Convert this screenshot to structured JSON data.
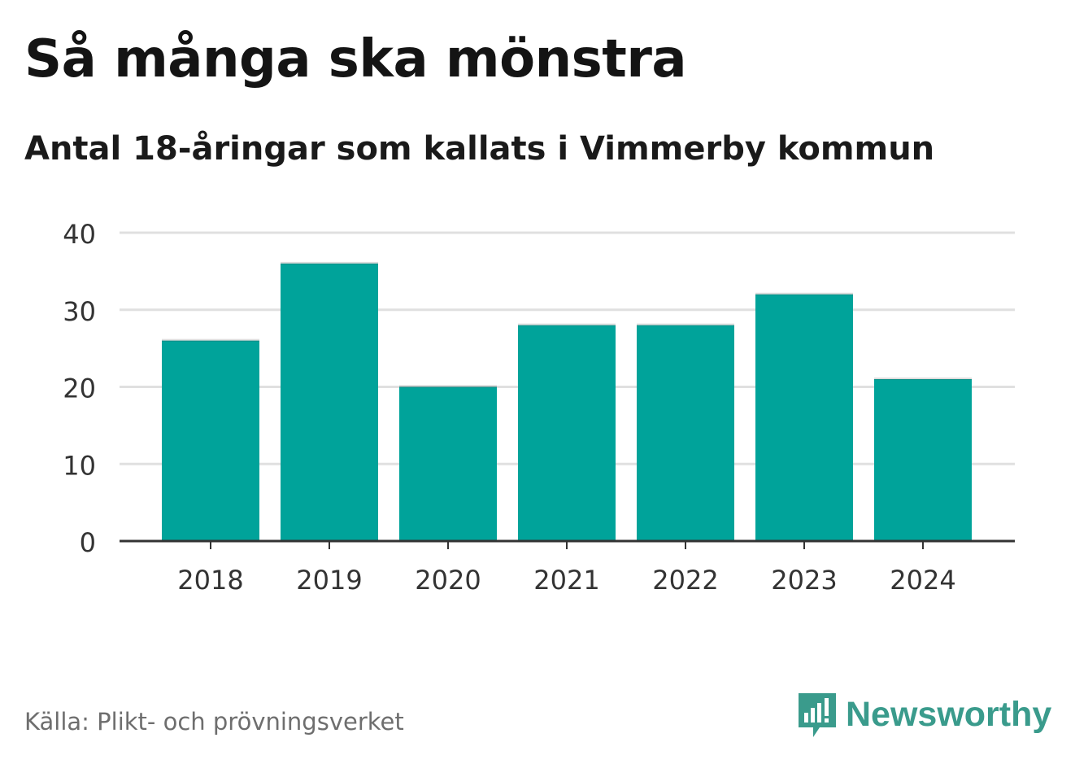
{
  "title": "Så många ska mönstra",
  "subtitle": "Antal 18-åringar som kallats i Vimmerby kommun",
  "source": "Källa: Plikt- och prövningsverket",
  "brand": {
    "name": "Newsworthy",
    "icon": "newsworthy-logo-icon",
    "color": "#3a9b8c"
  },
  "colors": {
    "bar": "#00a39a",
    "grid": "#e0e0e0",
    "axis": "#333333"
  },
  "chart_data": {
    "type": "bar",
    "title": "Så många ska mönstra",
    "subtitle": "Antal 18-åringar som kallats i Vimmerby kommun",
    "categories": [
      "2018",
      "2019",
      "2020",
      "2021",
      "2022",
      "2023",
      "2024"
    ],
    "values": [
      26,
      36,
      20,
      28,
      28,
      32,
      21
    ],
    "xlabel": "",
    "ylabel": "",
    "ylim": [
      0,
      40
    ],
    "yticks": [
      0,
      10,
      20,
      30,
      40
    ],
    "grid": true,
    "legend": "none"
  }
}
